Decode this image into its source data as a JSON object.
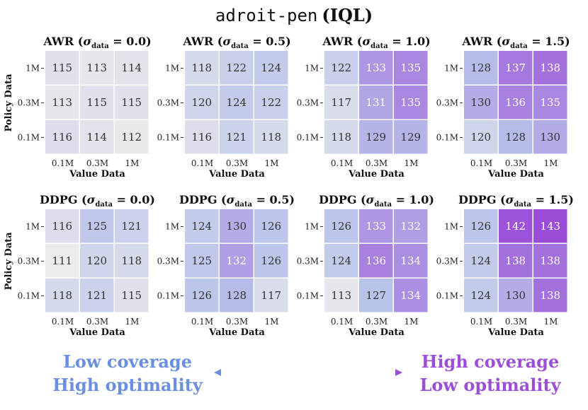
{
  "title": {
    "env": "adroit-pen",
    "algo": "IQL"
  },
  "chart_data": {
    "type": "heatmap",
    "rows": 2,
    "x_label": "Value Data",
    "y_label": "Policy Data",
    "x_ticks": [
      "0.1M",
      "0.3M",
      "1M"
    ],
    "y_ticks": [
      "1M",
      "0.3M",
      "0.1M"
    ],
    "color_range": [
      111,
      143
    ],
    "panels": [
      {
        "method": "AWR",
        "sigma": "0.0",
        "values": [
          [
            115,
            113,
            114
          ],
          [
            113,
            115,
            115
          ],
          [
            116,
            114,
            112
          ]
        ]
      },
      {
        "method": "AWR",
        "sigma": "0.5",
        "values": [
          [
            118,
            122,
            124
          ],
          [
            120,
            124,
            122
          ],
          [
            116,
            121,
            118
          ]
        ]
      },
      {
        "method": "AWR",
        "sigma": "1.0",
        "values": [
          [
            122,
            133,
            135
          ],
          [
            117,
            131,
            135
          ],
          [
            118,
            129,
            129
          ]
        ]
      },
      {
        "method": "AWR",
        "sigma": "1.5",
        "values": [
          [
            128,
            137,
            138
          ],
          [
            130,
            136,
            135
          ],
          [
            120,
            128,
            130
          ]
        ]
      },
      {
        "method": "DDPG",
        "sigma": "0.0",
        "values": [
          [
            116,
            125,
            121
          ],
          [
            111,
            120,
            118
          ],
          [
            118,
            121,
            115
          ]
        ]
      },
      {
        "method": "DDPG",
        "sigma": "0.5",
        "values": [
          [
            124,
            130,
            126
          ],
          [
            125,
            132,
            126
          ],
          [
            126,
            128,
            117
          ]
        ]
      },
      {
        "method": "DDPG",
        "sigma": "1.0",
        "values": [
          [
            126,
            133,
            132
          ],
          [
            124,
            136,
            134
          ],
          [
            113,
            127,
            134
          ]
        ]
      },
      {
        "method": "DDPG",
        "sigma": "1.5",
        "values": [
          [
            126,
            142,
            143
          ],
          [
            124,
            138,
            138
          ],
          [
            124,
            130,
            138
          ]
        ]
      }
    ]
  },
  "legend": {
    "left_line1": "Low coverage",
    "left_line2": "High optimality",
    "right_line1": "High coverage",
    "right_line2": "Low optimality",
    "left_color": "#6a8fde",
    "right_color": "#9b4fd6"
  },
  "colors": {
    "low": "#ececec",
    "mid": "#b8c3ea",
    "high": "#9a4bd8"
  }
}
